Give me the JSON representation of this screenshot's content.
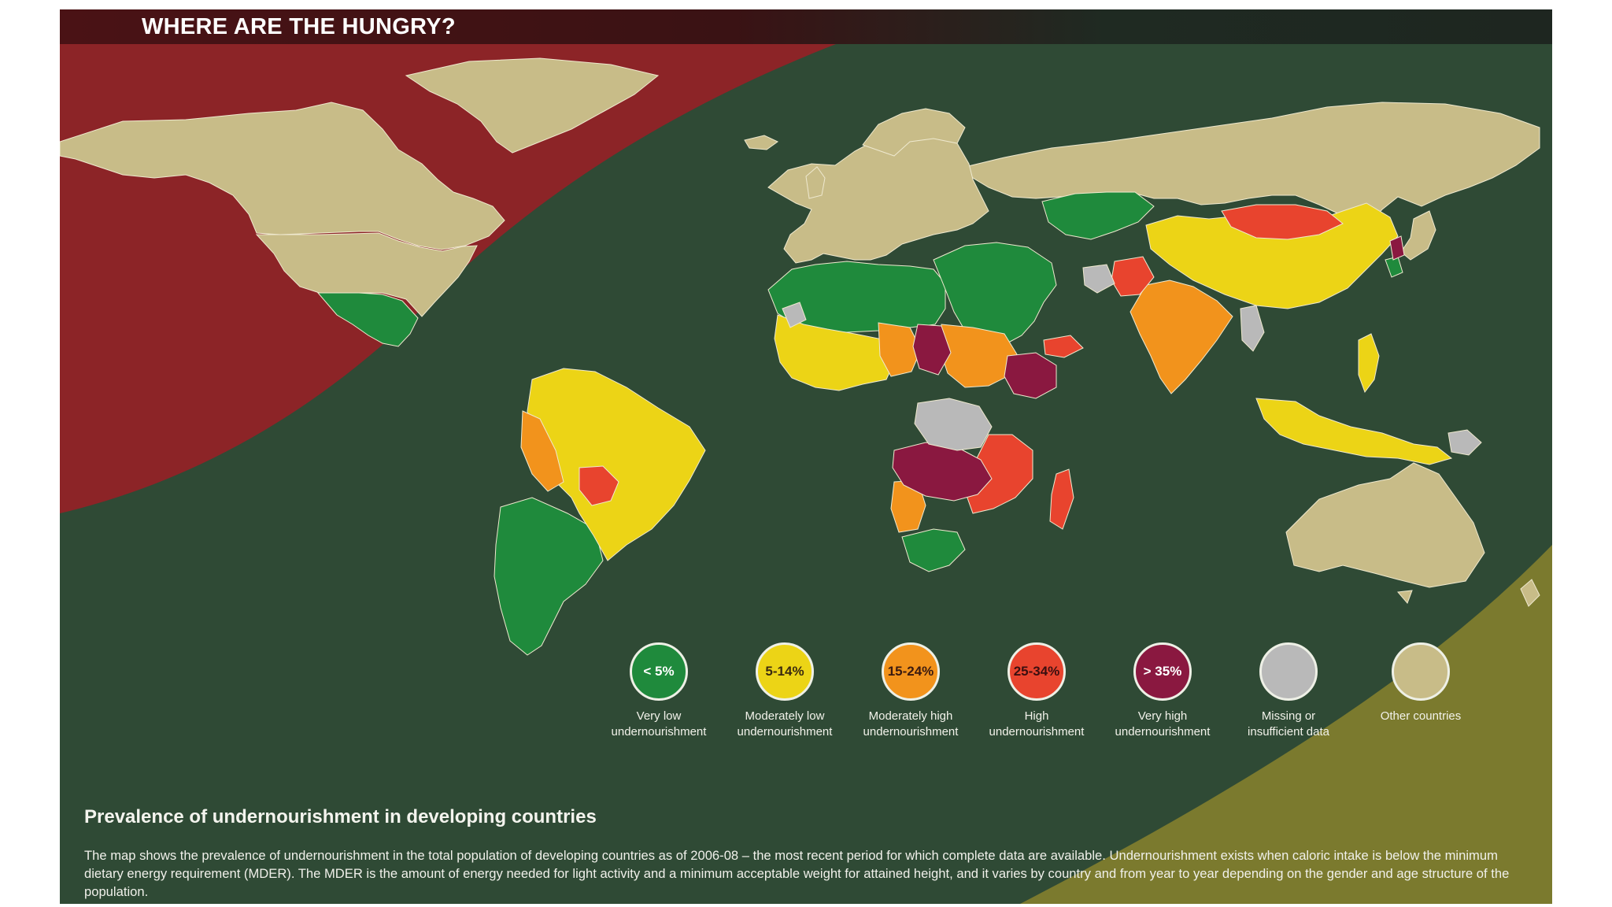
{
  "title": "WHERE ARE THE HUNGRY?",
  "subtitle": "Prevalence of undernourishment in developing countries",
  "description": "The map shows the prevalence of undernourishment in the total population of developing countries as of 2006-08 – the most recent period for which complete data are available. Undernourishment exists when caloric intake is below the minimum dietary energy requirement (MDER). The MDER is the amount of energy needed for light activity and a minimum acceptable weight for attained height, and it varies by country and from year to year depending on the gender and age structure of the population.",
  "colors": {
    "background": "#2f4a35",
    "red_band": "#8c2427",
    "olive_band": "#7b7a2e",
    "other_countries": "#c8bc88",
    "very_low": "#1f8a3c",
    "moderately_low": "#ecd416",
    "moderately_high": "#f2931c",
    "high": "#e8442e",
    "very_high": "#8a1840",
    "missing": "#b9b9b9"
  },
  "legend": [
    {
      "key": "very_low",
      "badge": "< 5%",
      "label": "Very low\nundernourishment",
      "color": "#1f8a3c",
      "text_color": "#ffffff"
    },
    {
      "key": "moderately_low",
      "badge": "5-14%",
      "label": "Moderately low\nundernourishment",
      "color": "#ecd416",
      "text_color": "#3a2a10"
    },
    {
      "key": "moderately_high",
      "badge": "15-24%",
      "label": "Moderately high\nundernourishment",
      "color": "#f2931c",
      "text_color": "#3a1a10"
    },
    {
      "key": "high",
      "badge": "25-34%",
      "label": "High\nundernourishment",
      "color": "#e8442e",
      "text_color": "#3a0f10"
    },
    {
      "key": "very_high",
      "badge": "> 35%",
      "label": "Very high\nundernourishment",
      "color": "#8a1840",
      "text_color": "#ffffff"
    },
    {
      "key": "missing",
      "badge": "",
      "label": "Missing or\ninsufficient data",
      "color": "#b9b9b9",
      "text_color": "#333333"
    },
    {
      "key": "other",
      "badge": "",
      "label": "Other countries",
      "color": "#c8bc88",
      "text_color": "#333333"
    }
  ]
}
